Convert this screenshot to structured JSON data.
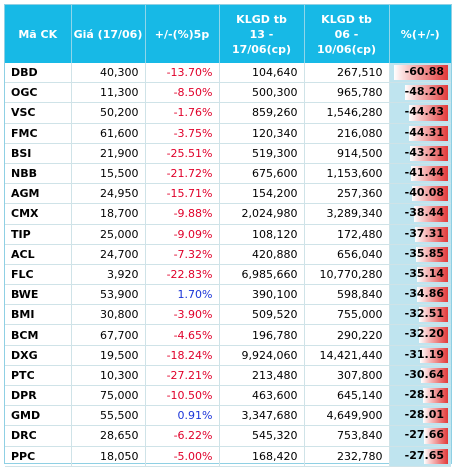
{
  "table": {
    "headers": [
      "Mã CK",
      "Giá (17/06)",
      "+/-(%)5p",
      "KLGD tb 13 - 17/06(cp)",
      "KLGD tb 06 - 10/06(cp)",
      "%(+/-)"
    ],
    "header_lines": [
      [
        "Mã CK"
      ],
      [
        "Giá (17/06)"
      ],
      [
        "+/-(%)5p"
      ],
      [
        "KLGD tb",
        "13 - 17/06(cp)"
      ],
      [
        "KLGD tb",
        "06 - 10/06(cp)"
      ],
      [
        "%(+/-)"
      ]
    ],
    "rows": [
      {
        "code": "DBD",
        "price": "40,300",
        "change5p": "-13.70%",
        "vol_recent": "104,640",
        "vol_prev": "267,510",
        "vol_change": "-60.88",
        "vol_change_num": -60.88,
        "change_sign": "neg"
      },
      {
        "code": "OGC",
        "price": "11,300",
        "change5p": "-8.50%",
        "vol_recent": "500,300",
        "vol_prev": "965,780",
        "vol_change": "-48.20",
        "vol_change_num": -48.2,
        "change_sign": "neg"
      },
      {
        "code": "VSC",
        "price": "50,200",
        "change5p": "-1.76%",
        "vol_recent": "859,260",
        "vol_prev": "1,546,280",
        "vol_change": "-44.43",
        "vol_change_num": -44.43,
        "change_sign": "neg"
      },
      {
        "code": "FMC",
        "price": "61,600",
        "change5p": "-3.75%",
        "vol_recent": "120,340",
        "vol_prev": "216,080",
        "vol_change": "-44.31",
        "vol_change_num": -44.31,
        "change_sign": "neg"
      },
      {
        "code": "BSI",
        "price": "21,900",
        "change5p": "-25.51%",
        "vol_recent": "519,300",
        "vol_prev": "914,500",
        "vol_change": "-43.21",
        "vol_change_num": -43.21,
        "change_sign": "neg"
      },
      {
        "code": "NBB",
        "price": "15,500",
        "change5p": "-21.72%",
        "vol_recent": "675,600",
        "vol_prev": "1,153,600",
        "vol_change": "-41.44",
        "vol_change_num": -41.44,
        "change_sign": "neg"
      },
      {
        "code": "AGM",
        "price": "24,950",
        "change5p": "-15.71%",
        "vol_recent": "154,200",
        "vol_prev": "257,360",
        "vol_change": "-40.08",
        "vol_change_num": -40.08,
        "change_sign": "neg"
      },
      {
        "code": "CMX",
        "price": "18,700",
        "change5p": "-9.88%",
        "vol_recent": "2,024,980",
        "vol_prev": "3,289,340",
        "vol_change": "-38.44",
        "vol_change_num": -38.44,
        "change_sign": "neg"
      },
      {
        "code": "TIP",
        "price": "25,000",
        "change5p": "-9.09%",
        "vol_recent": "108,120",
        "vol_prev": "172,480",
        "vol_change": "-37.31",
        "vol_change_num": -37.31,
        "change_sign": "neg"
      },
      {
        "code": "ACL",
        "price": "24,700",
        "change5p": "-7.32%",
        "vol_recent": "420,880",
        "vol_prev": "656,040",
        "vol_change": "-35.85",
        "vol_change_num": -35.85,
        "change_sign": "neg"
      },
      {
        "code": "FLC",
        "price": "3,920",
        "change5p": "-22.83%",
        "vol_recent": "6,985,660",
        "vol_prev": "10,770,280",
        "vol_change": "-35.14",
        "vol_change_num": -35.14,
        "change_sign": "neg"
      },
      {
        "code": "BWE",
        "price": "53,900",
        "change5p": "1.70%",
        "vol_recent": "390,100",
        "vol_prev": "598,840",
        "vol_change": "-34.86",
        "vol_change_num": -34.86,
        "change_sign": "pos"
      },
      {
        "code": "BMI",
        "price": "30,800",
        "change5p": "-3.90%",
        "vol_recent": "509,520",
        "vol_prev": "755,000",
        "vol_change": "-32.51",
        "vol_change_num": -32.51,
        "change_sign": "neg"
      },
      {
        "code": "BCM",
        "price": "67,700",
        "change5p": "-4.65%",
        "vol_recent": "196,780",
        "vol_prev": "290,220",
        "vol_change": "-32.20",
        "vol_change_num": -32.2,
        "change_sign": "neg"
      },
      {
        "code": "DXG",
        "price": "19,500",
        "change5p": "-18.24%",
        "vol_recent": "9,924,060",
        "vol_prev": "14,421,440",
        "vol_change": "-31.19",
        "vol_change_num": -31.19,
        "change_sign": "neg"
      },
      {
        "code": "PTC",
        "price": "10,300",
        "change5p": "-27.21%",
        "vol_recent": "213,480",
        "vol_prev": "307,800",
        "vol_change": "-30.64",
        "vol_change_num": -30.64,
        "change_sign": "neg"
      },
      {
        "code": "DPR",
        "price": "75,000",
        "change5p": "-10.50%",
        "vol_recent": "463,600",
        "vol_prev": "645,140",
        "vol_change": "-28.14",
        "vol_change_num": -28.14,
        "change_sign": "neg"
      },
      {
        "code": "GMD",
        "price": "55,500",
        "change5p": "0.91%",
        "vol_recent": "3,347,680",
        "vol_prev": "4,649,900",
        "vol_change": "-28.01",
        "vol_change_num": -28.01,
        "change_sign": "pos"
      },
      {
        "code": "DRC",
        "price": "28,650",
        "change5p": "-6.22%",
        "vol_recent": "545,320",
        "vol_prev": "753,840",
        "vol_change": "-27.66",
        "vol_change_num": -27.66,
        "change_sign": "neg"
      },
      {
        "code": "PPC",
        "price": "18,050",
        "change5p": "-5.00%",
        "vol_recent": "168,420",
        "vol_prev": "232,780",
        "vol_change": "-27.65",
        "vol_change_num": -27.65,
        "change_sign": "neg"
      }
    ]
  },
  "colors": {
    "header_bg": "#17b9e6",
    "negative": "#e0002a",
    "positive": "#1b35d8",
    "bar_cell_bg": "#bfe4ef",
    "bar_color": "#e23a3a"
  }
}
